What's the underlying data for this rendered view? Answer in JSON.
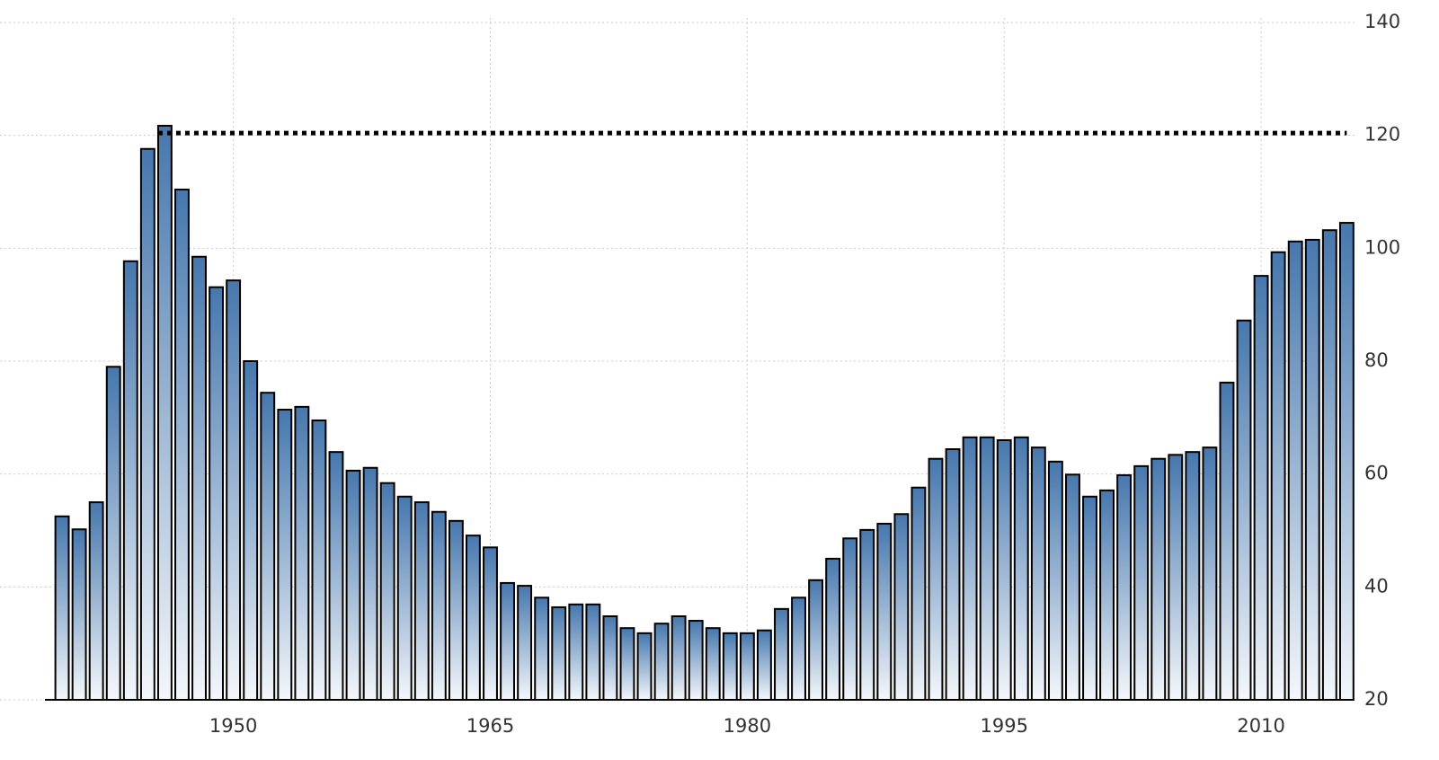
{
  "chart_data": {
    "type": "bar",
    "x": [
      1940,
      1941,
      1942,
      1943,
      1944,
      1945,
      1946,
      1947,
      1948,
      1949,
      1950,
      1951,
      1952,
      1953,
      1954,
      1955,
      1956,
      1957,
      1958,
      1959,
      1960,
      1961,
      1962,
      1963,
      1964,
      1965,
      1966,
      1967,
      1968,
      1969,
      1970,
      1971,
      1972,
      1973,
      1974,
      1975,
      1976,
      1977,
      1978,
      1979,
      1980,
      1981,
      1982,
      1983,
      1984,
      1985,
      1986,
      1987,
      1988,
      1989,
      1990,
      1991,
      1992,
      1993,
      1994,
      1995,
      1996,
      1997,
      1998,
      1999,
      2000,
      2001,
      2002,
      2003,
      2004,
      2005,
      2006,
      2007,
      2008,
      2009,
      2010,
      2011,
      2012,
      2013,
      2014,
      2015
    ],
    "values": [
      52.5,
      50.2,
      55,
      79,
      97.7,
      117.6,
      121.7,
      110.4,
      98.5,
      93.1,
      94.3,
      80,
      74.4,
      71.4,
      71.9,
      69.5,
      63.9,
      60.6,
      61.1,
      58.4,
      56,
      55,
      53.3,
      51.7,
      49.1,
      47,
      40.7,
      40.2,
      38.1,
      36.4,
      36.9,
      36.9,
      34.8,
      32.7,
      31.8,
      33.5,
      34.8,
      34,
      32.7,
      31.8,
      31.8,
      32.3,
      36.1,
      38.1,
      41.2,
      45,
      48.6,
      50.1,
      51.2,
      52.9,
      57.6,
      62.7,
      64.4,
      66.5,
      66.5,
      66,
      66.5,
      64.7,
      62.2,
      59.9,
      56,
      57.1,
      59.8,
      61.4,
      62.7,
      63.4,
      63.9,
      64.7,
      76.2,
      87.2,
      95.1,
      99.3,
      101.2,
      101.5,
      103.2,
      104.5
    ],
    "color": "#4677ad",
    "xlim": [
      1939,
      2015.4
    ],
    "xticks": [
      1950,
      1965,
      1980,
      1995,
      2010
    ],
    "ylim": [
      20,
      140
    ],
    "yticks": [
      20,
      40,
      60,
      80,
      100,
      120,
      140
    ],
    "grid": true,
    "reference_line": {
      "value": 120.4,
      "x": [
        1946,
        2015
      ]
    }
  }
}
